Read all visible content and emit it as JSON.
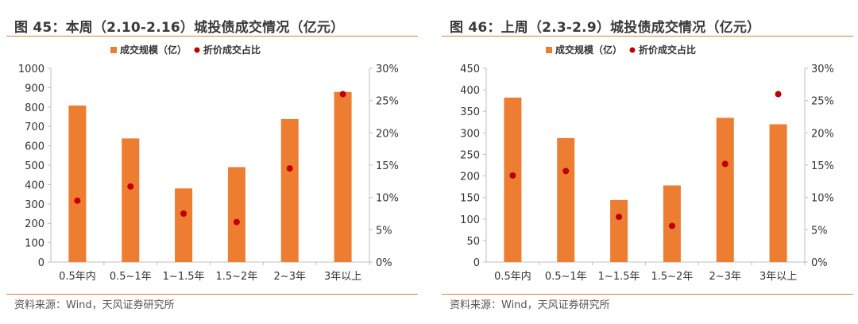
{
  "source_left": "资料来源：Wind，天风证券研究所",
  "source_right": "资料来源：Wind，天风证券研究所",
  "colors": {
    "bar": "#ed7d31",
    "dot": "#c00000",
    "accent_rule": "#d9823a"
  },
  "chart_data": [
    {
      "type": "bar",
      "title": "图 45：本周（2.10-2.16）城投债成交情况（亿元）",
      "categories": [
        "0.5年内",
        "0.5~1年",
        "1~1.5年",
        "1.5~2年",
        "2~3年",
        "3年以上"
      ],
      "series": [
        {
          "name": "成交规模（亿）",
          "type": "bar",
          "axis": "left",
          "values": [
            808,
            638,
            380,
            490,
            738,
            878
          ]
        },
        {
          "name": "折价成交占比",
          "type": "scatter",
          "axis": "right",
          "values": [
            0.095,
            0.117,
            0.075,
            0.062,
            0.145,
            0.26
          ]
        }
      ],
      "y_left": {
        "ylim": [
          0,
          1000
        ],
        "ticks": [
          "0",
          "100",
          "200",
          "300",
          "400",
          "500",
          "600",
          "700",
          "800",
          "900",
          "1000"
        ]
      },
      "y_right": {
        "ylim": [
          0,
          0.3
        ],
        "ticks": [
          "0%",
          "5%",
          "10%",
          "15%",
          "20%",
          "25%",
          "30%"
        ]
      },
      "legend": "top-center",
      "grid": false
    },
    {
      "type": "bar",
      "title": "图 46：上周（2.3-2.9）城投债成交情况（亿元）",
      "categories": [
        "0.5年内",
        "0.5~1年",
        "1~1.5年",
        "1.5~2年",
        "2~3年",
        "3年以上"
      ],
      "series": [
        {
          "name": "成交规模（亿）",
          "type": "bar",
          "axis": "left",
          "values": [
            382,
            288,
            144,
            178,
            335,
            320
          ]
        },
        {
          "name": "折价成交占比",
          "type": "scatter",
          "axis": "right",
          "values": [
            0.134,
            0.141,
            0.07,
            0.056,
            0.152,
            0.26
          ]
        }
      ],
      "y_left": {
        "ylim": [
          0,
          450
        ],
        "ticks": [
          "0",
          "50",
          "100",
          "150",
          "200",
          "250",
          "300",
          "350",
          "400",
          "450"
        ]
      },
      "y_right": {
        "ylim": [
          0,
          0.3
        ],
        "ticks": [
          "0%",
          "5%",
          "10%",
          "15%",
          "20%",
          "25%",
          "30%"
        ]
      },
      "legend": "top-center",
      "grid": false
    }
  ]
}
